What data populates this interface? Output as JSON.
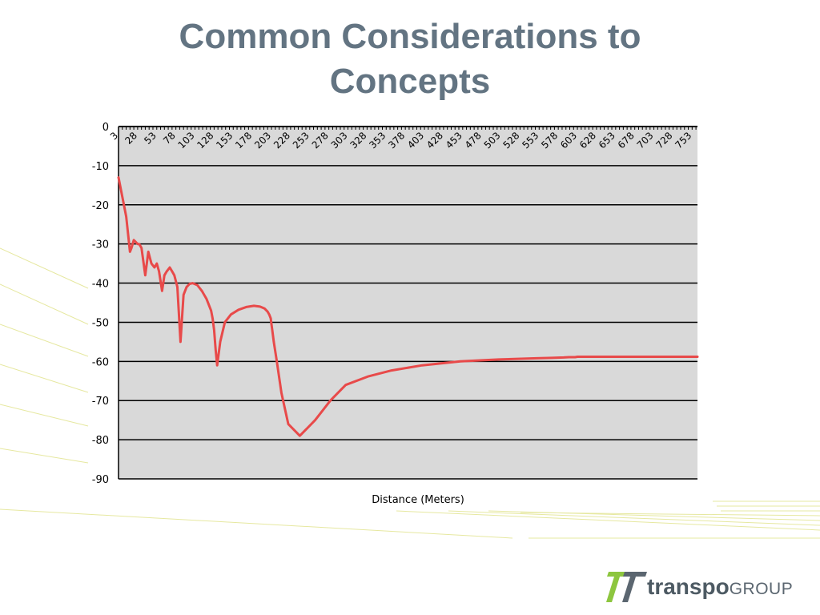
{
  "slide": {
    "title_line1": "Common Considerations to",
    "title_line2": "Concepts"
  },
  "logo": {
    "part1": "transpo",
    "part2": "GROUP",
    "accent_color": "#8dc63f",
    "text_color": "#5b6670"
  },
  "colors": {
    "title": "#637482",
    "plot_bg": "#d9d9d9",
    "series": "#e84a4a",
    "gridline": "#000000"
  },
  "chart_data": {
    "type": "line",
    "title": "",
    "xlabel": "Distance (Meters)",
    "ylabel": "",
    "ylim": [
      -90,
      0
    ],
    "yticks": [
      0,
      -10,
      -20,
      -30,
      -40,
      -50,
      -60,
      -70,
      -80,
      -90
    ],
    "x_tick_labels": [
      "3",
      "28",
      "53",
      "78",
      "103",
      "128",
      "153",
      "178",
      "203",
      "228",
      "253",
      "278",
      "303",
      "328",
      "353",
      "378",
      "403",
      "428",
      "453",
      "478",
      "503",
      "528",
      "553",
      "578",
      "603",
      "628",
      "653",
      "678",
      "703",
      "728",
      "753"
    ],
    "grid": "horizontal",
    "legend": "none",
    "series": [
      {
        "name": "",
        "x": [
          3,
          8,
          13,
          18,
          20,
          23,
          28,
          30,
          33,
          38,
          42,
          46,
          50,
          53,
          56,
          60,
          63,
          66,
          70,
          73,
          76,
          80,
          84,
          88,
          92,
          96,
          100,
          106,
          112,
          118,
          124,
          126,
          128,
          130,
          132,
          136,
          142,
          150,
          160,
          170,
          180,
          188,
          194,
          198,
          200,
          202,
          203,
          204,
          206,
          210,
          216,
          225,
          240,
          260,
          280,
          300,
          330,
          360,
          400,
          450,
          500,
          550,
          570,
          585,
          592,
          596,
          600,
          603,
          606,
          610,
          618,
          630,
          650,
          680,
          720,
          760
        ],
        "y": [
          -13,
          -18,
          -23,
          -32,
          -31,
          -29,
          -30,
          -30,
          -31,
          -38,
          -32,
          -35,
          -36,
          -35,
          -37,
          -42,
          -38,
          -37,
          -36,
          -37,
          -38,
          -41,
          -55,
          -43,
          -41,
          -40.2,
          -40,
          -40.5,
          -42,
          -44,
          -47,
          -49,
          -52,
          -57,
          -61,
          -55,
          -50,
          -48,
          -46.8,
          -46.1,
          -45.8,
          -46,
          -46.5,
          -47.3,
          -48,
          -49,
          -50.5,
          -52,
          -55,
          -60,
          -68,
          -76,
          -79,
          -75,
          -70,
          -66,
          -63.8,
          -62.3,
          -61,
          -60,
          -59.5,
          -59.2,
          -59.1,
          -59,
          -58.9,
          -58.9,
          -58.9,
          -58.8,
          -58.8,
          -58.8,
          -58.8,
          -58.8,
          -58.8,
          -58.8,
          -58.8,
          -58.8
        ]
      }
    ]
  }
}
